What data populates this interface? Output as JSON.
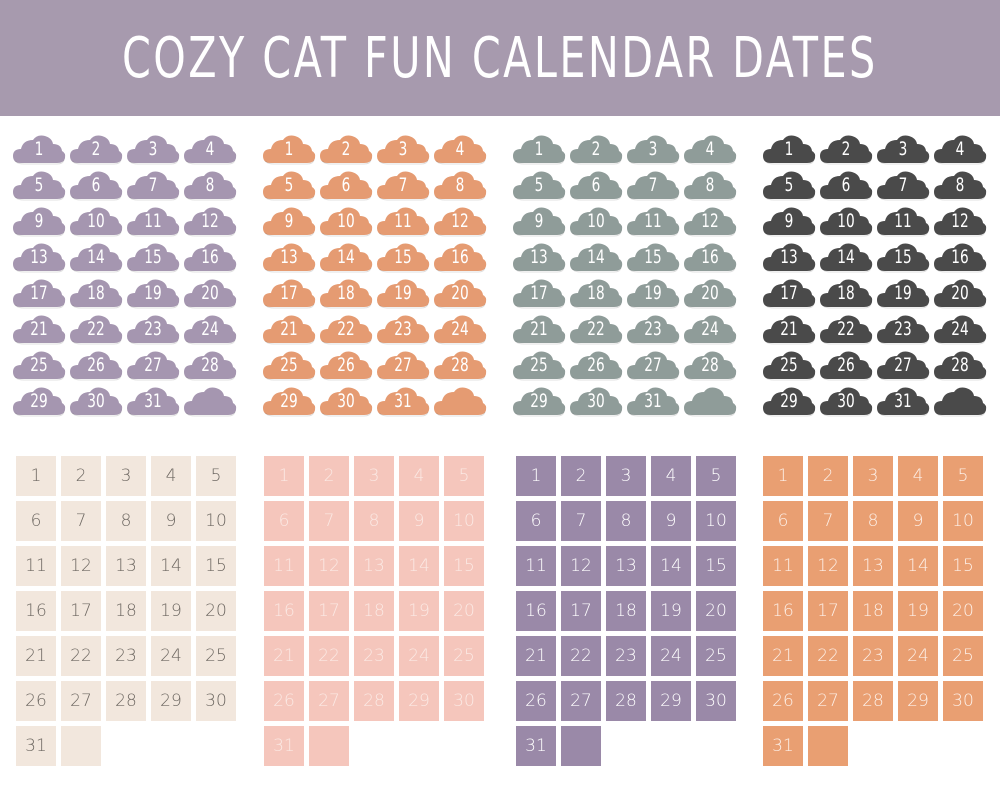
{
  "header": {
    "title": "COZY CAT FUN CALENDAR DATES",
    "color": "#a79aae"
  },
  "dates": [
    "1",
    "2",
    "3",
    "4",
    "5",
    "6",
    "7",
    "8",
    "9",
    "10",
    "11",
    "12",
    "13",
    "14",
    "15",
    "16",
    "17",
    "18",
    "19",
    "20",
    "21",
    "22",
    "23",
    "24",
    "25",
    "26",
    "27",
    "28",
    "29",
    "30",
    "31",
    ""
  ],
  "cloud_sets": [
    {
      "color": "#a596b0"
    },
    {
      "color": "#e59b72"
    },
    {
      "color": "#8f9c99"
    },
    {
      "color": "#4a4a4a"
    }
  ],
  "square_sets": [
    {
      "color": "#f2e7dd",
      "text_color": "#6e6862"
    },
    {
      "color": "#f5c6bc",
      "text_color": "#fbe9e4"
    },
    {
      "color": "#9a89a8",
      "text_color": "#ffffff"
    },
    {
      "color": "#e99f72",
      "text_color": "#fdf0e8"
    }
  ]
}
